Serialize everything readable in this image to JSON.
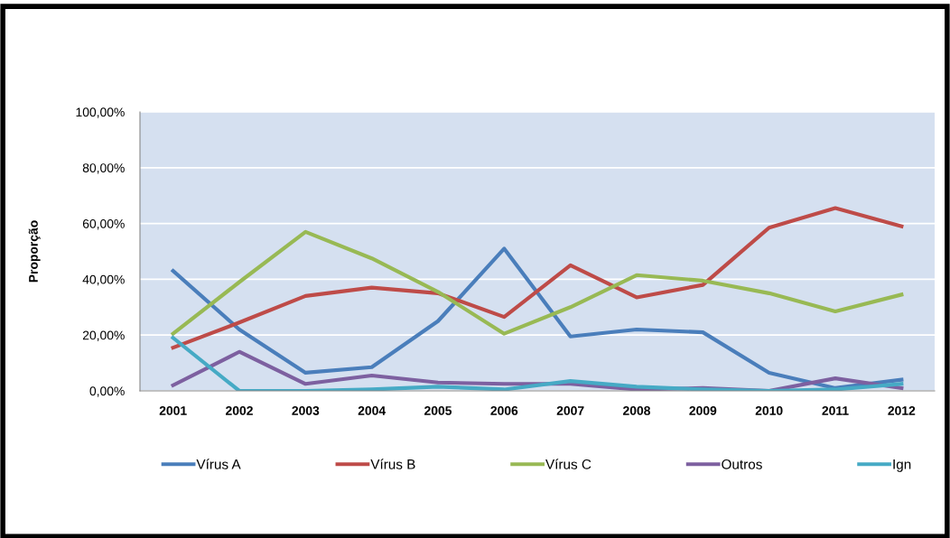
{
  "chart_data": {
    "type": "line",
    "ylabel": "Proporção",
    "categories": [
      "2001",
      "2002",
      "2003",
      "2004",
      "2005",
      "2006",
      "2007",
      "2008",
      "2009",
      "2010",
      "2011",
      "2012"
    ],
    "series": [
      {
        "name": "Vírus A",
        "color": "#4a7ebb",
        "values": [
          43,
          22,
          6.5,
          8.5,
          25,
          51,
          19.5,
          22,
          21,
          6.5,
          1,
          4
        ]
      },
      {
        "name": "Vírus B",
        "color": "#be4b48",
        "values": [
          15.5,
          24.5,
          34,
          37,
          35,
          26.5,
          45,
          33.5,
          38,
          58.5,
          65.5,
          59
        ]
      },
      {
        "name": "Vírus C",
        "color": "#98b954",
        "values": [
          20.5,
          39,
          57,
          47.5,
          35.5,
          20.5,
          30,
          41.5,
          39.5,
          35,
          28.5,
          34.5
        ]
      },
      {
        "name": "Outros",
        "color": "#7d60a0",
        "values": [
          2,
          14,
          2.5,
          5.5,
          3,
          2.5,
          2.5,
          0.5,
          1,
          0,
          4.5,
          1
        ]
      },
      {
        "name": "Ign",
        "color": "#46aac5",
        "values": [
          19,
          0,
          0,
          0.5,
          1.5,
          0.5,
          3.5,
          1.5,
          0.5,
          0,
          0.5,
          2.5
        ]
      }
    ],
    "ylim": [
      0,
      100
    ],
    "yticks": [
      {
        "value": 0,
        "label": "0,00%"
      },
      {
        "value": 20,
        "label": "20,00%"
      },
      {
        "value": 40,
        "label": "40,00%"
      },
      {
        "value": 60,
        "label": "60,00%"
      },
      {
        "value": 80,
        "label": "80,00%"
      },
      {
        "value": 100,
        "label": "100,00%"
      }
    ],
    "grid": "y",
    "legend": "bottom",
    "marker": "none",
    "line_style": "solid"
  }
}
